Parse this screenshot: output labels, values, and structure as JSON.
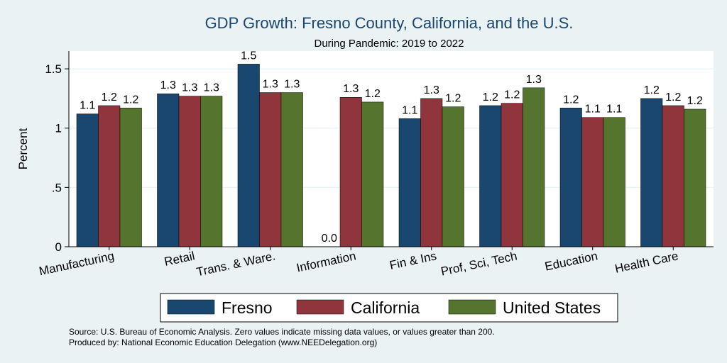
{
  "chart_data": {
    "type": "bar",
    "title": "GDP Growth: Fresno County, California, and the U.S.",
    "subtitle": "During Pandemic: 2019 to 2022",
    "ylabel": "Percent",
    "xlabel": "",
    "ylim": [
      0,
      1.65
    ],
    "yticks": [
      0,
      0.5,
      1,
      1.5
    ],
    "ytick_labels": [
      "0",
      ".5",
      "1",
      "1.5"
    ],
    "grid": true,
    "legend_position": "bottom",
    "categories": [
      "Manufacturing",
      "Retail",
      "Trans. & Ware.",
      "Information",
      "Fin & Ins",
      "Prof, Sci, Tech",
      "Education",
      "Health Care"
    ],
    "series": [
      {
        "name": "Fresno",
        "color": "#1a476f",
        "values": [
          1.12,
          1.29,
          1.54,
          0,
          1.08,
          1.19,
          1.17,
          1.25
        ],
        "labels": [
          "1.1",
          "1.3",
          "1.5",
          "0.0",
          "1.1",
          "1.2",
          "1.2",
          "1.2"
        ]
      },
      {
        "name": "California",
        "color": "#90353b",
        "values": [
          1.19,
          1.27,
          1.3,
          1.26,
          1.25,
          1.21,
          1.09,
          1.19
        ],
        "labels": [
          "1.2",
          "1.3",
          "1.3",
          "1.3",
          "1.3",
          "1.2",
          "1.1",
          "1.2"
        ]
      },
      {
        "name": "United States",
        "color": "#55752f",
        "values": [
          1.17,
          1.27,
          1.3,
          1.22,
          1.18,
          1.34,
          1.09,
          1.16
        ],
        "labels": [
          "1.2",
          "1.3",
          "1.3",
          "1.2",
          "1.2",
          "1.3",
          "1.1",
          "1.2"
        ]
      }
    ]
  },
  "source_note": "Source: U.S. Bureau of Economic Analysis. Zero values indicate missing data values, or values greater than 200.",
  "produced_by": "Produced by: National Economic Education Delegation (www.NEEDelegation.org)"
}
